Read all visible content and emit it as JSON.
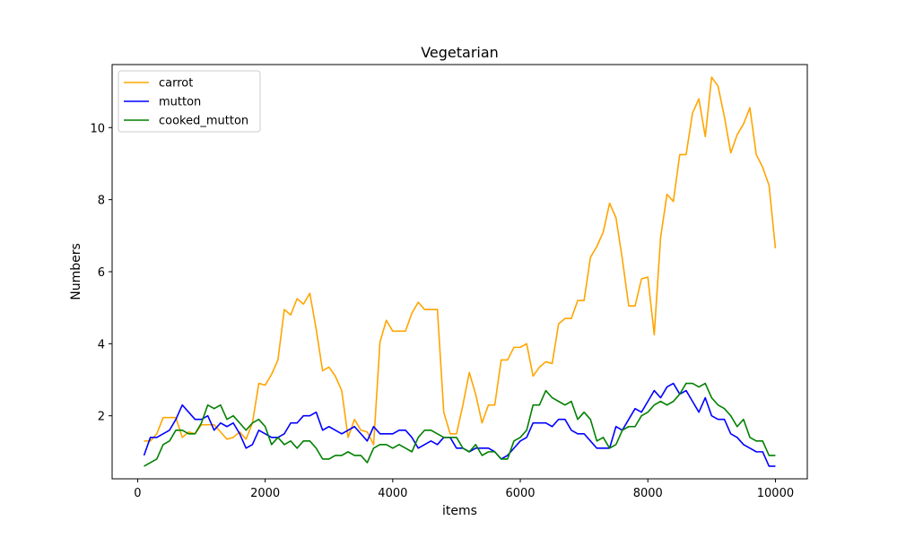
{
  "chart_data": {
    "type": "line",
    "title": "Vegetarian",
    "xlabel": "items",
    "ylabel": "Numbers",
    "xlim": [
      -400,
      10500
    ],
    "ylim": [
      0.25,
      11.75
    ],
    "x_ticks": [
      0,
      2000,
      4000,
      6000,
      8000,
      10000
    ],
    "y_ticks": [
      2,
      4,
      6,
      8,
      10
    ],
    "legend_position": "top-left",
    "grid": false,
    "x": [
      100,
      200,
      300,
      400,
      500,
      600,
      700,
      800,
      900,
      1000,
      1100,
      1200,
      1300,
      1400,
      1500,
      1600,
      1700,
      1800,
      1900,
      2000,
      2100,
      2200,
      2300,
      2400,
      2500,
      2600,
      2700,
      2800,
      2900,
      3000,
      3100,
      3200,
      3300,
      3400,
      3500,
      3600,
      3700,
      3800,
      3900,
      4000,
      4100,
      4200,
      4300,
      4400,
      4500,
      4600,
      4700,
      4800,
      4900,
      5000,
      5100,
      5200,
      5300,
      5400,
      5500,
      5600,
      5700,
      5800,
      5900,
      6000,
      6100,
      6200,
      6300,
      6400,
      6500,
      6600,
      6700,
      6800,
      6900,
      7000,
      7100,
      7200,
      7300,
      7400,
      7500,
      7600,
      7700,
      7800,
      7900,
      8000,
      8100,
      8200,
      8300,
      8400,
      8500,
      8600,
      8700,
      8800,
      8900,
      9000,
      9100,
      9200,
      9300,
      9400,
      9500,
      9600,
      9700,
      9800,
      9900,
      10000
    ],
    "series": [
      {
        "name": "carrot",
        "color": "#ffa500",
        "values": [
          1.3,
          1.3,
          1.5,
          1.95,
          1.95,
          1.95,
          1.4,
          1.55,
          1.5,
          1.75,
          1.75,
          1.75,
          1.55,
          1.35,
          1.4,
          1.55,
          1.35,
          1.8,
          2.9,
          2.85,
          3.15,
          3.55,
          4.95,
          4.8,
          5.25,
          5.1,
          5.4,
          4.4,
          3.25,
          3.35,
          3.1,
          2.7,
          1.4,
          1.9,
          1.6,
          1.55,
          1.2,
          4.05,
          4.65,
          4.35,
          4.35,
          4.35,
          4.85,
          5.15,
          4.95,
          4.95,
          4.95,
          2.1,
          1.5,
          1.5,
          2.3,
          3.2,
          2.6,
          1.8,
          2.3,
          2.3,
          3.55,
          3.55,
          3.9,
          3.9,
          4.0,
          3.1,
          3.35,
          3.5,
          3.45,
          4.55,
          4.7,
          4.7,
          5.2,
          5.2,
          6.4,
          6.7,
          7.1,
          7.9,
          7.5,
          6.35,
          5.05,
          5.05,
          5.8,
          5.85,
          4.25,
          6.95,
          8.15,
          7.95,
          9.25,
          9.25,
          10.4,
          10.8,
          9.75,
          11.4,
          11.15,
          10.3,
          9.3,
          9.8,
          10.1,
          10.55,
          9.25,
          8.9,
          8.4,
          6.65
        ]
      },
      {
        "name": "mutton",
        "color": "#0000ff",
        "values": [
          0.9,
          1.4,
          1.4,
          1.5,
          1.6,
          1.9,
          2.3,
          2.1,
          1.9,
          1.9,
          2.0,
          1.6,
          1.8,
          1.7,
          1.8,
          1.5,
          1.1,
          1.2,
          1.6,
          1.5,
          1.4,
          1.4,
          1.5,
          1.8,
          1.8,
          2.0,
          2.0,
          2.1,
          1.6,
          1.7,
          1.6,
          1.5,
          1.6,
          1.7,
          1.5,
          1.3,
          1.7,
          1.5,
          1.5,
          1.5,
          1.6,
          1.6,
          1.4,
          1.1,
          1.2,
          1.3,
          1.2,
          1.4,
          1.4,
          1.1,
          1.1,
          1.0,
          1.1,
          1.1,
          1.1,
          1.0,
          0.8,
          0.9,
          1.1,
          1.3,
          1.4,
          1.8,
          1.8,
          1.8,
          1.7,
          1.9,
          1.9,
          1.6,
          1.5,
          1.5,
          1.3,
          1.1,
          1.1,
          1.1,
          1.7,
          1.6,
          1.9,
          2.2,
          2.1,
          2.4,
          2.7,
          2.5,
          2.8,
          2.9,
          2.6,
          2.7,
          2.4,
          2.1,
          2.5,
          2.0,
          1.9,
          1.9,
          1.5,
          1.4,
          1.2,
          1.1,
          1.0,
          1.0,
          0.6,
          0.6
        ]
      },
      {
        "name": "cooked_mutton",
        "color": "#008000",
        "values": [
          0.6,
          0.7,
          0.8,
          1.2,
          1.3,
          1.6,
          1.6,
          1.5,
          1.5,
          1.8,
          2.3,
          2.2,
          2.3,
          1.9,
          2.0,
          1.8,
          1.6,
          1.8,
          1.9,
          1.7,
          1.2,
          1.4,
          1.2,
          1.3,
          1.1,
          1.3,
          1.3,
          1.1,
          0.8,
          0.8,
          0.9,
          0.9,
          1.0,
          0.9,
          0.9,
          0.7,
          1.1,
          1.2,
          1.2,
          1.1,
          1.2,
          1.1,
          1.0,
          1.4,
          1.6,
          1.6,
          1.5,
          1.4,
          1.4,
          1.4,
          1.1,
          1.0,
          1.2,
          0.9,
          1.0,
          1.0,
          0.8,
          0.8,
          1.3,
          1.4,
          1.6,
          2.3,
          2.3,
          2.7,
          2.5,
          2.4,
          2.3,
          2.4,
          1.9,
          2.1,
          1.9,
          1.3,
          1.4,
          1.1,
          1.2,
          1.6,
          1.7,
          1.7,
          2.0,
          2.1,
          2.3,
          2.4,
          2.3,
          2.4,
          2.6,
          2.9,
          2.9,
          2.8,
          2.9,
          2.5,
          2.3,
          2.2,
          2.0,
          1.7,
          1.9,
          1.4,
          1.3,
          1.3,
          0.9,
          0.9
        ]
      }
    ]
  }
}
